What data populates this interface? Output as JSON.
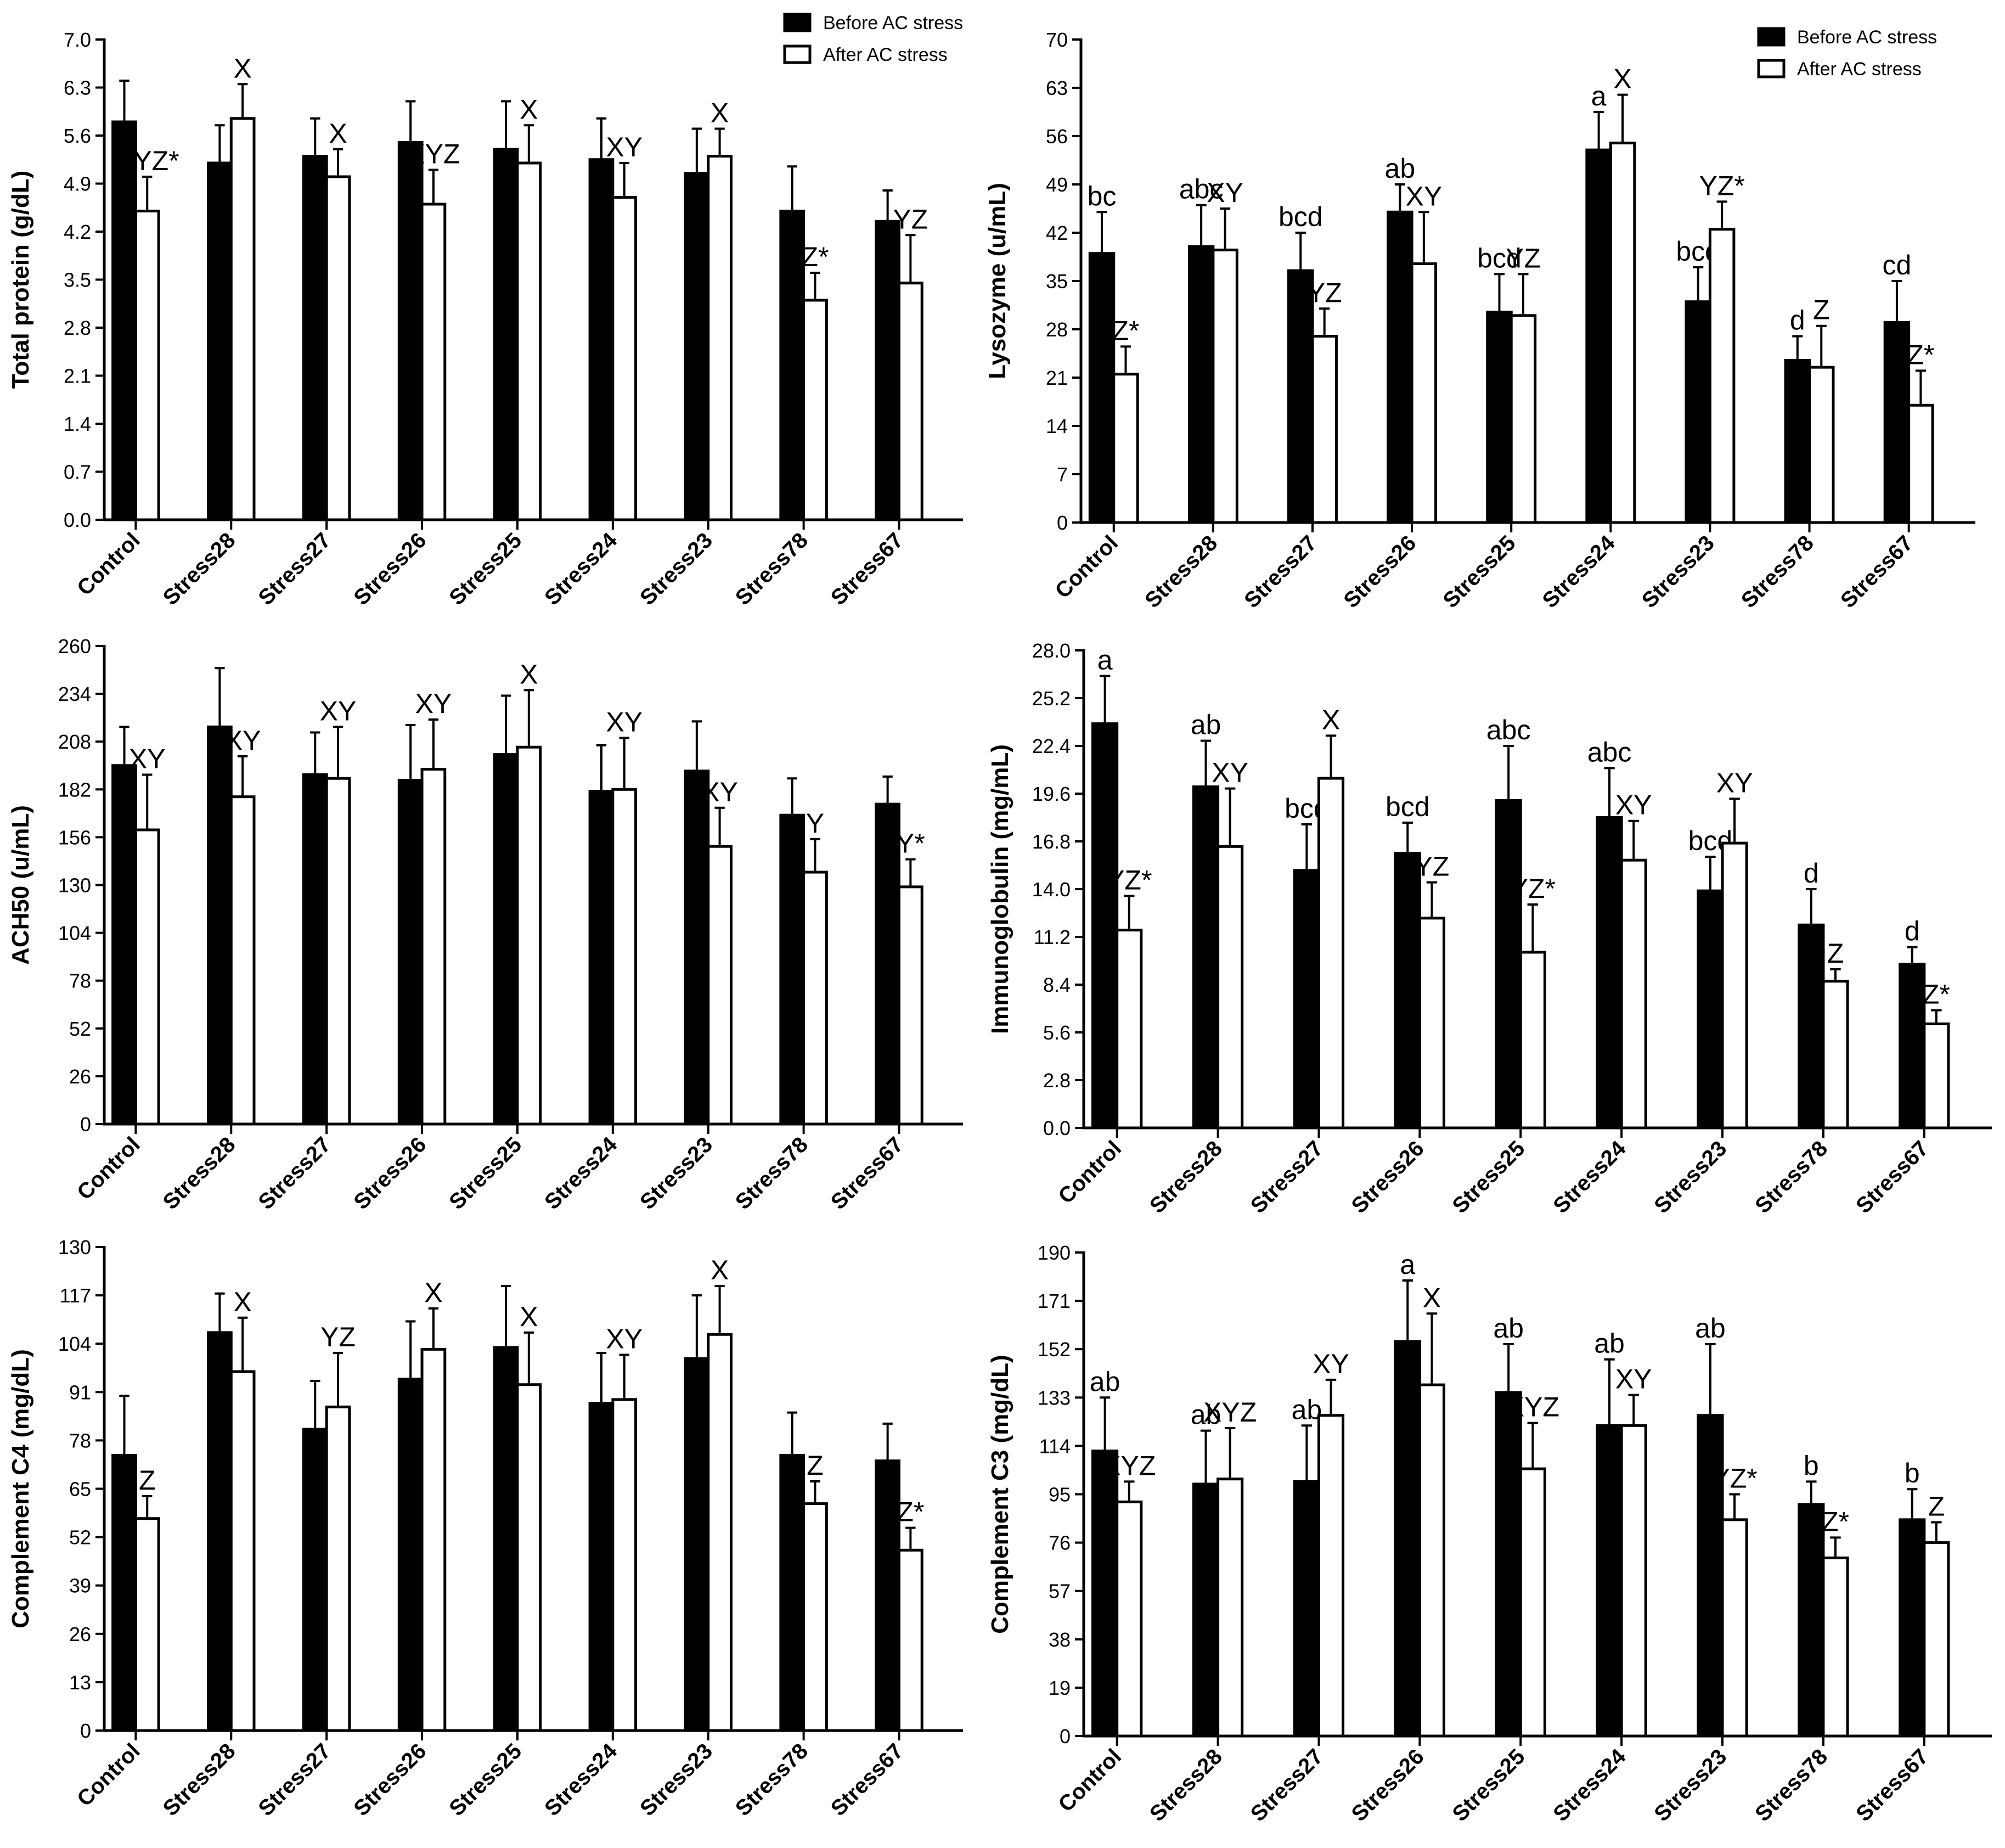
{
  "colors": {
    "before": "#000000",
    "after": "#ffffff",
    "axis": "#000000"
  },
  "legend": {
    "before_label": "Before AC stress",
    "after_label": "After AC stress"
  },
  "chart_data": [
    {
      "id": "total-protein",
      "type": "bar",
      "ylabel": "Total protein (g/dL)",
      "ylim": [
        0,
        7.0
      ],
      "yticks": [
        "0.0",
        "0.7",
        "1.4",
        "2.1",
        "2.8",
        "3.5",
        "4.2",
        "4.9",
        "5.6",
        "6.3",
        "7.0"
      ],
      "categories": [
        "Control",
        "Stress28",
        "Stress27",
        "Stress26",
        "Stress25",
        "Stress24",
        "Stress23",
        "Stress78",
        "Stress67"
      ],
      "show_legend": true,
      "series": [
        {
          "name": "Before AC stress",
          "values": [
            5.8,
            5.2,
            5.3,
            5.5,
            5.4,
            5.25,
            5.05,
            4.5,
            4.35
          ],
          "errors": [
            0.6,
            0.55,
            0.55,
            0.6,
            0.7,
            0.6,
            0.65,
            0.65,
            0.45
          ],
          "labels": [
            "",
            "",
            "",
            "",
            "",
            "",
            "",
            "",
            ""
          ]
        },
        {
          "name": "After AC stress",
          "values": [
            4.5,
            5.85,
            5.0,
            4.6,
            5.2,
            4.7,
            5.3,
            3.2,
            3.45
          ],
          "errors": [
            0.5,
            0.5,
            0.4,
            0.5,
            0.55,
            0.5,
            0.4,
            0.4,
            0.7
          ],
          "labels": [
            "XYZ*",
            "X",
            "X",
            "XYZ",
            "X",
            "XY",
            "X",
            "Z*",
            "YZ"
          ]
        }
      ]
    },
    {
      "id": "lysozyme",
      "type": "bar",
      "ylabel": "Lysozyme (u/mL)",
      "ylim": [
        0,
        70
      ],
      "yticks": [
        "0",
        "7",
        "14",
        "21",
        "28",
        "35",
        "42",
        "49",
        "56",
        "63",
        "70"
      ],
      "categories": [
        "Control",
        "Stress28",
        "Stress27",
        "Stress26",
        "Stress25",
        "Stress24",
        "Stress23",
        "Stress78",
        "Stress67"
      ],
      "show_legend": true,
      "series": [
        {
          "name": "Before AC stress",
          "values": [
            39,
            40,
            36.5,
            45,
            30.5,
            54,
            32,
            23.5,
            29
          ],
          "errors": [
            6,
            6,
            5.5,
            4,
            5.5,
            5.5,
            5,
            3.5,
            6
          ],
          "labels": [
            "bc",
            "abc",
            "bcd",
            "ab",
            "bcd",
            "a",
            "bcd",
            "d",
            "cd"
          ]
        },
        {
          "name": "After AC stress",
          "values": [
            21.5,
            39.5,
            27,
            37.5,
            30,
            55,
            42.5,
            22.5,
            17
          ],
          "errors": [
            4,
            6,
            4,
            7.5,
            6,
            7,
            4,
            6,
            5
          ],
          "labels": [
            "Z*",
            "XY",
            "YZ",
            "XY",
            "YZ",
            "X",
            "YZ*",
            "Z",
            "Z*"
          ]
        }
      ]
    },
    {
      "id": "ach50",
      "type": "bar",
      "ylabel": "ACH50 (u/mL)",
      "ylim": [
        0,
        260
      ],
      "yticks": [
        "0",
        "26",
        "52",
        "78",
        "104",
        "130",
        "156",
        "182",
        "208",
        "234",
        "260"
      ],
      "categories": [
        "Control",
        "Stress28",
        "Stress27",
        "Stress26",
        "Stress25",
        "Stress24",
        "Stress23",
        "Stress78",
        "Stress67"
      ],
      "show_legend": false,
      "series": [
        {
          "name": "Before AC stress",
          "values": [
            195,
            216,
            190,
            187,
            201,
            181,
            192,
            168,
            174
          ],
          "errors": [
            21,
            32,
            23,
            30,
            32,
            25,
            27,
            20,
            15
          ],
          "labels": [
            "",
            "",
            "",
            "",
            "",
            "",
            "",
            "",
            ""
          ]
        },
        {
          "name": "After AC stress",
          "values": [
            160,
            178,
            188,
            193,
            205,
            182,
            151,
            137,
            129
          ],
          "errors": [
            30,
            22,
            28,
            27,
            31,
            28,
            21,
            18,
            15
          ],
          "labels": [
            "XY",
            "XY",
            "XY",
            "XY",
            "X",
            "XY",
            "XY",
            "Y",
            "Y*"
          ]
        }
      ]
    },
    {
      "id": "immunoglobulin",
      "type": "bar",
      "ylabel": "Immunoglobulin (mg/mL)",
      "ylim": [
        0,
        28.0
      ],
      "yticks": [
        "0.0",
        "2.8",
        "5.6",
        "8.4",
        "11.2",
        "14.0",
        "16.8",
        "19.6",
        "22.4",
        "25.2",
        "28.0"
      ],
      "categories": [
        "Control",
        "Stress28",
        "Stress27",
        "Stress26",
        "Stress25",
        "Stress24",
        "Stress23",
        "Stress78",
        "Stress67"
      ],
      "show_legend": false,
      "series": [
        {
          "name": "Before AC stress",
          "values": [
            23.7,
            20,
            15.1,
            16.1,
            19.2,
            18.2,
            13.9,
            11.9,
            9.6
          ],
          "errors": [
            2.8,
            2.7,
            2.7,
            1.8,
            3.2,
            2.9,
            2.0,
            2.1,
            1.0
          ],
          "labels": [
            "a",
            "ab",
            "bcd",
            "bcd",
            "abc",
            "abc",
            "bcd",
            "d",
            "d"
          ]
        },
        {
          "name": "After AC stress",
          "values": [
            11.6,
            16.5,
            20.5,
            12.3,
            10.3,
            15.7,
            16.7,
            8.6,
            6.1
          ],
          "errors": [
            2.0,
            3.4,
            2.5,
            2.1,
            2.8,
            2.3,
            2.6,
            0.7,
            0.8
          ],
          "labels": [
            "YZ*",
            "XY",
            "X",
            "YZ",
            "YZ*",
            "XY",
            "XY",
            "Z",
            "Z*"
          ]
        }
      ]
    },
    {
      "id": "complement-c4",
      "type": "bar",
      "ylabel": "Complement C4 (mg/dL)",
      "ylim": [
        0,
        130
      ],
      "yticks": [
        "0",
        "13",
        "26",
        "39",
        "52",
        "65",
        "78",
        "91",
        "104",
        "117",
        "130"
      ],
      "categories": [
        "Control",
        "Stress28",
        "Stress27",
        "Stress26",
        "Stress25",
        "Stress24",
        "Stress23",
        "Stress78",
        "Stress67"
      ],
      "show_legend": false,
      "series": [
        {
          "name": "Before AC stress",
          "values": [
            74,
            107,
            81,
            94.5,
            103,
            88,
            100,
            74,
            72.5
          ],
          "errors": [
            16,
            10.5,
            13,
            15.5,
            16.5,
            13.5,
            17,
            11.5,
            10
          ],
          "labels": [
            "",
            "",
            "",
            "",
            "",
            "",
            "",
            "",
            ""
          ]
        },
        {
          "name": "After AC stress",
          "values": [
            57,
            96.5,
            87,
            102.5,
            93,
            89,
            106.5,
            61,
            48.5
          ],
          "errors": [
            6,
            14.5,
            14.5,
            11,
            14,
            12,
            13,
            6,
            6
          ],
          "labels": [
            "Z",
            "X",
            "YZ",
            "X",
            "X",
            "XY",
            "X",
            "Z",
            "Z*"
          ]
        }
      ]
    },
    {
      "id": "complement-c3",
      "type": "bar",
      "ylabel": "Complement C3 (mg/dL)",
      "ylim": [
        0,
        190
      ],
      "yticks": [
        "0",
        "19",
        "38",
        "57",
        "76",
        "95",
        "114",
        "133",
        "152",
        "171",
        "190"
      ],
      "categories": [
        "Control",
        "Stress28",
        "Stress27",
        "Stress26",
        "Stress25",
        "Stress24",
        "Stress23",
        "Stress78",
        "Stress67"
      ],
      "show_legend": false,
      "series": [
        {
          "name": "Before AC stress",
          "values": [
            112,
            99,
            100,
            155,
            135,
            122,
            126,
            91,
            85
          ],
          "errors": [
            21,
            21,
            22,
            24,
            19,
            26,
            28,
            9,
            12
          ],
          "labels": [
            "ab",
            "ab",
            "ab",
            "a",
            "ab",
            "ab",
            "ab",
            "b",
            "b"
          ]
        },
        {
          "name": "After AC stress",
          "values": [
            92,
            101,
            126,
            138,
            105,
            122,
            85,
            70,
            76
          ],
          "errors": [
            8,
            20,
            14,
            28,
            18,
            12,
            10,
            8,
            8
          ],
          "labels": [
            "XYZ",
            "XYZ",
            "XY",
            "X",
            "XYZ",
            "XY",
            "YZ*",
            "Z*",
            "Z"
          ]
        }
      ]
    }
  ]
}
